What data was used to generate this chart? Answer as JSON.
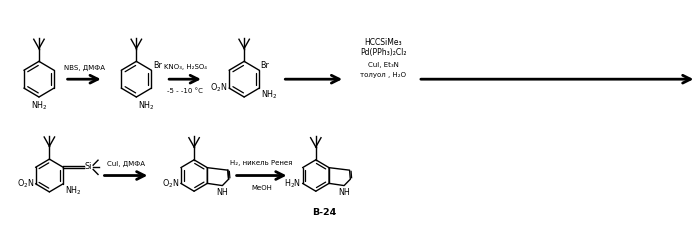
{
  "background_color": "#ffffff",
  "figsize": [
    6.97,
    2.44
  ],
  "dpi": 100,
  "row1": {
    "arrow1_label": "NBS, ДМФА",
    "arrow2_label_top": "KNO₃, H₂SO₄",
    "arrow2_label_bot": "-5 - -10 °C",
    "arrow3_label_top": "HCCSiMe₃",
    "arrow3_label_mid": "Pd(PPh₃)₂Cl₂",
    "arrow3_label_bot1": "CuI, Et₃N",
    "arrow3_label_bot2": "толуол , H₂O"
  },
  "row2": {
    "arrow1_label": "CuI, ДМФА",
    "arrow2_label_top": "H₂, никель Ренея",
    "arrow2_label_bot": "MeOH",
    "final_label": "В-24"
  }
}
